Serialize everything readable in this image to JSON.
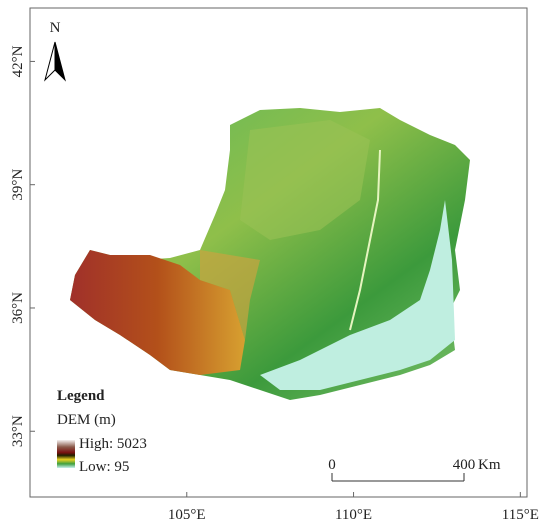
{
  "map": {
    "north": "N",
    "xlim": [
      100.3,
      115.2
    ],
    "ylim": [
      31.4,
      43.3
    ],
    "lon_ticks": [
      {
        "value": 105,
        "label": "105°E"
      },
      {
        "value": 110,
        "label": "110°E"
      },
      {
        "value": 115,
        "label": "115°E"
      }
    ],
    "lat_ticks": [
      {
        "value": 33,
        "label": "33°N"
      },
      {
        "value": 36,
        "label": "36°N"
      },
      {
        "value": 39,
        "label": "39°N"
      },
      {
        "value": 42,
        "label": "42°N"
      }
    ],
    "legend": {
      "title": "Legend",
      "subtitle": "DEM (m)",
      "high": "High: 5023",
      "low": "Low: 95"
    },
    "scale_bar": {
      "ticks": [
        0,
        400
      ],
      "unit": "Km"
    }
  }
}
